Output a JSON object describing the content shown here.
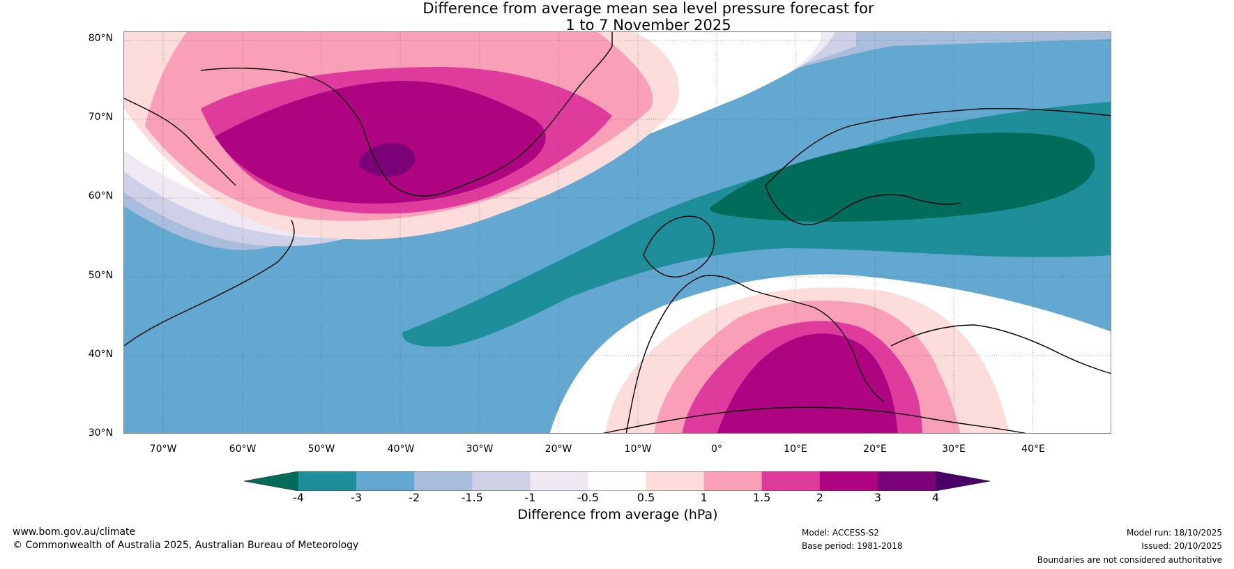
{
  "title": {
    "line1": "Difference from average mean sea level pressure forecast for",
    "line2": "1 to 7 November 2025"
  },
  "axes": {
    "lat_labels": [
      "80°N",
      "70°N",
      "60°N",
      "50°N",
      "40°N",
      "30°N"
    ],
    "lon_labels": [
      "70°W",
      "60°W",
      "50°W",
      "40°W",
      "30°W",
      "20°W",
      "10°W",
      "0°",
      "10°E",
      "20°E",
      "30°E",
      "40°E"
    ]
  },
  "colorbar": {
    "ticks": [
      "-4",
      "-3",
      "-2",
      "-1.5",
      "-1",
      "-0.5",
      "0.5",
      "1",
      "1.5",
      "2",
      "3",
      "4"
    ],
    "colors": [
      "#006d5a",
      "#1e8f9a",
      "#63a8d0",
      "#a9bddc",
      "#cdd0e6",
      "#efe9f4",
      "#ffffff",
      "#fddcdc",
      "#f9a0b8",
      "#df3b9d",
      "#ae0481",
      "#7a0177",
      "#4b0069"
    ],
    "label": "Difference from average (hPa)"
  },
  "footer": {
    "website": "www.bom.gov.au/climate",
    "copyright": "© Commonwealth of Australia 2025, Australian Bureau of Meteorology",
    "model": "Model: ACCESS-S2",
    "base_period": "Base period: 1981-2018",
    "model_run": "Model run: 18/10/2025",
    "issued": "Issued: 20/10/2025",
    "disclaimer": "Boundaries are not considered authoritative"
  }
}
